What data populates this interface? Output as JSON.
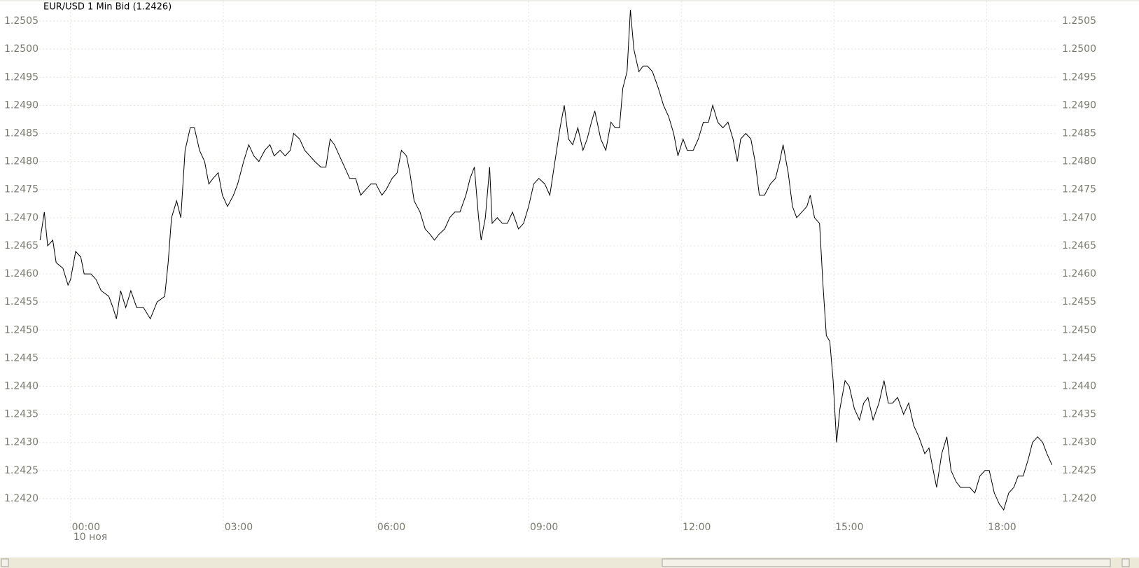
{
  "chart_data": {
    "type": "line",
    "title": "EUR/USD 1 Min Bid (1.2426)",
    "date_label": "10 ноя",
    "color": "#000000",
    "grid": true,
    "xlim": [
      -37,
      1163
    ],
    "xticks": [
      {
        "value": 0,
        "label": "00:00"
      },
      {
        "value": 180,
        "label": "03:00"
      },
      {
        "value": 360,
        "label": "06:00"
      },
      {
        "value": 540,
        "label": "09:00"
      },
      {
        "value": 720,
        "label": "12:00"
      },
      {
        "value": 900,
        "label": "15:00"
      },
      {
        "value": 1080,
        "label": "18:00"
      }
    ],
    "ylim": [
      1.24165,
      1.25085
    ],
    "yticks": [
      {
        "value": 1.242,
        "label": "1.2420"
      },
      1.2425,
      {
        "value": 1.243,
        "label": "1.2430"
      },
      1.2435,
      {
        "value": 1.244,
        "label": "1.2440"
      },
      1.2445,
      {
        "value": 1.245,
        "label": "1.2450"
      },
      1.2455,
      {
        "value": 1.246,
        "label": "1.2460"
      },
      1.2465,
      {
        "value": 1.247,
        "label": "1.2470"
      },
      1.2475,
      {
        "value": 1.248,
        "label": "1.2480"
      },
      1.2485,
      {
        "value": 1.249,
        "label": "1.2490"
      },
      1.2495,
      {
        "value": 1.25,
        "label": "1.2500"
      },
      1.2505
    ],
    "x": [
      -36,
      -31,
      -27,
      -21,
      -17,
      -9,
      -3,
      0,
      6,
      12,
      16,
      24,
      30,
      36,
      45,
      50,
      54,
      59,
      65,
      71,
      78,
      86,
      94,
      102,
      111,
      115,
      119,
      125,
      130,
      135,
      141,
      146,
      152,
      158,
      163,
      168,
      174,
      179,
      185,
      192,
      197,
      204,
      210,
      216,
      222,
      229,
      235,
      240,
      247,
      253,
      259,
      263,
      270,
      276,
      282,
      288,
      295,
      301,
      306,
      311,
      317,
      323,
      329,
      336,
      342,
      348,
      354,
      360,
      367,
      372,
      379,
      385,
      390,
      396,
      400,
      405,
      412,
      418,
      424,
      429,
      434,
      441,
      447,
      453,
      459,
      466,
      471,
      476,
      481,
      484,
      489,
      494,
      497,
      503,
      509,
      515,
      521,
      528,
      534,
      540,
      546,
      552,
      559,
      565,
      571,
      577,
      582,
      587,
      592,
      598,
      604,
      609,
      614,
      618,
      625,
      631,
      637,
      642,
      647,
      651,
      656,
      660,
      664,
      670,
      675,
      680,
      686,
      693,
      699,
      705,
      711,
      716,
      722,
      727,
      734,
      740,
      746,
      752,
      757,
      763,
      769,
      775,
      781,
      786,
      790,
      796,
      802,
      807,
      812,
      818,
      825,
      831,
      836,
      840,
      846,
      851,
      856,
      862,
      868,
      872,
      877,
      883,
      887,
      891,
      895,
      899,
      903,
      907,
      913,
      918,
      924,
      930,
      935,
      940,
      946,
      953,
      959,
      964,
      969,
      975,
      982,
      988,
      994,
      1000,
      1007,
      1012,
      1017,
      1021,
      1027,
      1033,
      1038,
      1044,
      1049,
      1054,
      1060,
      1066,
      1072,
      1078,
      1083,
      1089,
      1095,
      1100,
      1106,
      1112,
      1117,
      1123,
      1129,
      1134,
      1140,
      1146,
      1151,
      1157
    ],
    "values": [
      1.2466,
      1.2471,
      1.2465,
      1.2466,
      1.2462,
      1.2461,
      1.2458,
      1.2459,
      1.2464,
      1.2463,
      1.246,
      1.246,
      1.2459,
      1.2457,
      1.2456,
      1.2454,
      1.2452,
      1.2457,
      1.2454,
      1.2457,
      1.2454,
      1.2454,
      1.2452,
      1.2455,
      1.2456,
      1.2462,
      1.247,
      1.2473,
      1.247,
      1.2482,
      1.2486,
      1.2486,
      1.2482,
      1.248,
      1.2476,
      1.2477,
      1.2478,
      1.2474,
      1.2472,
      1.2474,
      1.2476,
      1.248,
      1.2483,
      1.2481,
      1.248,
      1.2482,
      1.2483,
      1.2481,
      1.2482,
      1.2481,
      1.2482,
      1.2485,
      1.2484,
      1.2482,
      1.2481,
      1.248,
      1.2479,
      1.2479,
      1.2484,
      1.2483,
      1.2481,
      1.2479,
      1.2477,
      1.2477,
      1.2474,
      1.2475,
      1.2476,
      1.2476,
      1.2474,
      1.2475,
      1.2477,
      1.2478,
      1.2482,
      1.2481,
      1.2478,
      1.2473,
      1.2471,
      1.2468,
      1.2467,
      1.2466,
      1.2467,
      1.2468,
      1.247,
      1.2471,
      1.2471,
      1.2474,
      1.2477,
      1.2479,
      1.247,
      1.2466,
      1.247,
      1.2479,
      1.2469,
      1.247,
      1.2469,
      1.2469,
      1.2471,
      1.2468,
      1.2469,
      1.2472,
      1.2476,
      1.2477,
      1.2476,
      1.2474,
      1.248,
      1.2486,
      1.249,
      1.2484,
      1.2483,
      1.2486,
      1.2482,
      1.2484,
      1.2487,
      1.2489,
      1.2484,
      1.2482,
      1.2487,
      1.2486,
      1.2486,
      1.2493,
      1.2496,
      1.2507,
      1.25,
      1.2496,
      1.2497,
      1.2497,
      1.2496,
      1.2493,
      1.249,
      1.2488,
      1.2485,
      1.2481,
      1.2484,
      1.2482,
      1.2482,
      1.2484,
      1.2487,
      1.2487,
      1.249,
      1.2487,
      1.2486,
      1.2487,
      1.2484,
      1.248,
      1.2484,
      1.2485,
      1.2484,
      1.248,
      1.2474,
      1.2474,
      1.2476,
      1.2477,
      1.248,
      1.2483,
      1.2478,
      1.2472,
      1.247,
      1.2471,
      1.2472,
      1.2474,
      1.247,
      1.2469,
      1.2458,
      1.2449,
      1.2448,
      1.2441,
      1.243,
      1.2436,
      1.2441,
      1.244,
      1.2436,
      1.2434,
      1.2437,
      1.2438,
      1.2434,
      1.2437,
      1.2441,
      1.2437,
      1.2437,
      1.2438,
      1.2435,
      1.2437,
      1.2433,
      1.2431,
      1.2428,
      1.2429,
      1.2425,
      1.2422,
      1.2428,
      1.2431,
      1.2425,
      1.2423,
      1.2422,
      1.2422,
      1.2422,
      1.2421,
      1.2424,
      1.2425,
      1.2425,
      1.2421,
      1.2419,
      1.2418,
      1.2421,
      1.2422,
      1.2424,
      1.2424,
      1.2427,
      1.243,
      1.2431,
      1.243,
      1.2428,
      1.2426
    ]
  }
}
